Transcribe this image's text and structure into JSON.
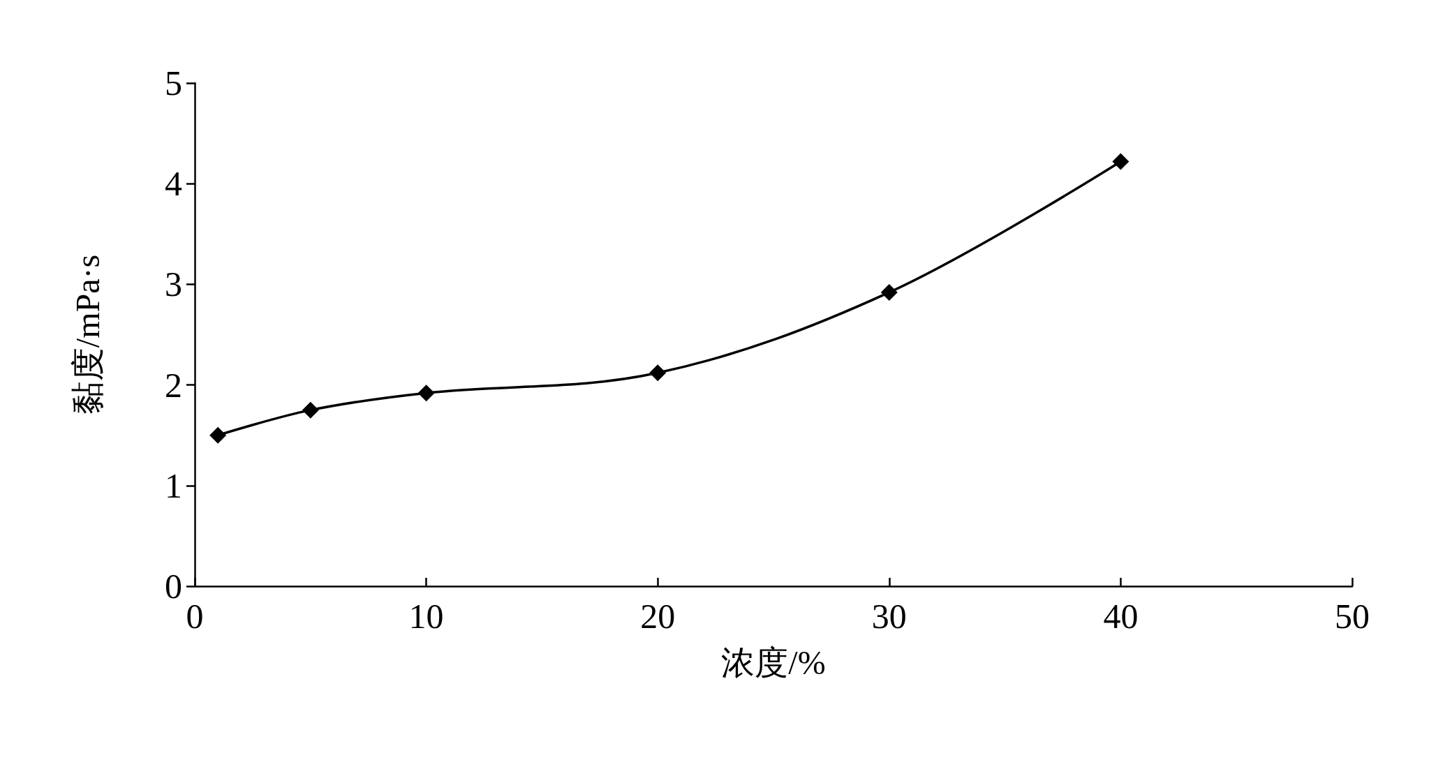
{
  "chart_data": {
    "type": "line",
    "xlabel": "浓度/%",
    "ylabel": "黏度/mPa·s",
    "x": [
      1,
      5,
      10,
      20,
      30,
      40
    ],
    "series": [
      {
        "color": "#000000",
        "values": [
          1.5,
          1.75,
          1.92,
          2.12,
          2.92,
          4.22
        ]
      }
    ],
    "xlim": [
      0,
      50
    ],
    "xticks": [
      0,
      10,
      20,
      30,
      40,
      50
    ],
    "ylim": [
      0,
      5
    ],
    "yticks": [
      0,
      1,
      2,
      3,
      4,
      5
    ],
    "marker": "diamond",
    "line_style": "solid"
  }
}
